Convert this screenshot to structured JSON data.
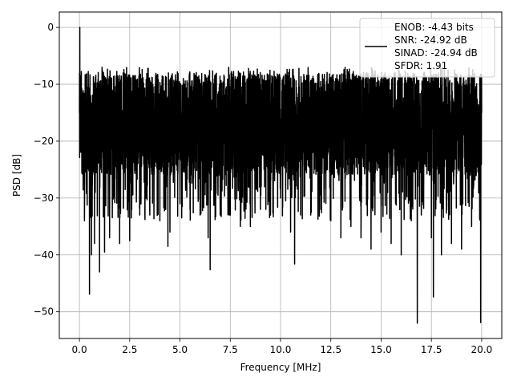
{
  "chart_data": {
    "type": "line",
    "title": "",
    "xlabel": "Frequency [MHz]",
    "ylabel": "PSD [dB]",
    "xlim": [
      -1.0,
      21.0
    ],
    "ylim": [
      -54.7,
      2.7
    ],
    "x_ticks": [
      0.0,
      2.5,
      5.0,
      7.5,
      10.0,
      12.5,
      15.0,
      17.5,
      20.0
    ],
    "x_tick_labels": [
      "0.0",
      "2.5",
      "5.0",
      "7.5",
      "10.0",
      "12.5",
      "15.0",
      "17.5",
      "20.0"
    ],
    "y_ticks": [
      0,
      -10,
      -20,
      -30,
      -40,
      -50
    ],
    "y_tick_labels": [
      "0",
      "−10",
      "−20",
      "−30",
      "−40",
      "−50"
    ],
    "grid": true,
    "legend_position": "top-right",
    "legend_lines": [
      "ENOB: -4.43 bits",
      "SNR: -24.92 dB",
      "SINAD: -24.94 dB",
      "SFDR: 1.91"
    ],
    "line_color": "#000000",
    "series": [
      {
        "description_points": "dense noisy spectrum; anchor points read from the figure",
        "x": [
          0.0,
          0.02,
          0.1,
          0.25,
          0.5,
          0.6,
          0.75,
          1.0,
          1.25,
          1.5,
          2.0,
          2.5,
          3.0,
          3.5,
          4.0,
          4.4,
          4.5,
          5.0,
          5.5,
          6.0,
          6.4,
          6.5,
          7.0,
          7.5,
          8.0,
          8.5,
          9.0,
          9.5,
          10.0,
          10.5,
          10.7,
          11.0,
          11.5,
          12.0,
          12.5,
          13.0,
          13.5,
          14.0,
          14.5,
          15.0,
          15.5,
          16.0,
          16.5,
          16.8,
          17.0,
          17.5,
          17.6,
          18.0,
          18.5,
          19.0,
          19.5,
          19.95,
          20.0
        ],
        "y": [
          -15.0,
          0.0,
          -20.0,
          -34.0,
          -46.9,
          -40.0,
          -38.0,
          -43.0,
          -39.5,
          -37.0,
          -38.0,
          -37.5,
          -33.0,
          -33.0,
          -34.0,
          -38.5,
          -36.0,
          -31.0,
          -32.0,
          -33.0,
          -37.0,
          -42.6,
          -33.0,
          -33.0,
          -35.0,
          -35.0,
          -32.0,
          -33.0,
          -30.0,
          -36.0,
          -41.6,
          -33.0,
          -33.0,
          -32.0,
          -34.0,
          -37.0,
          -35.0,
          -37.0,
          -39.0,
          -36.0,
          -38.0,
          -40.0,
          -34.0,
          -52.0,
          -33.0,
          -37.0,
          -47.4,
          -40.0,
          -38.0,
          -39.0,
          -35.0,
          -51.9,
          -15.0
        ]
      }
    ]
  }
}
